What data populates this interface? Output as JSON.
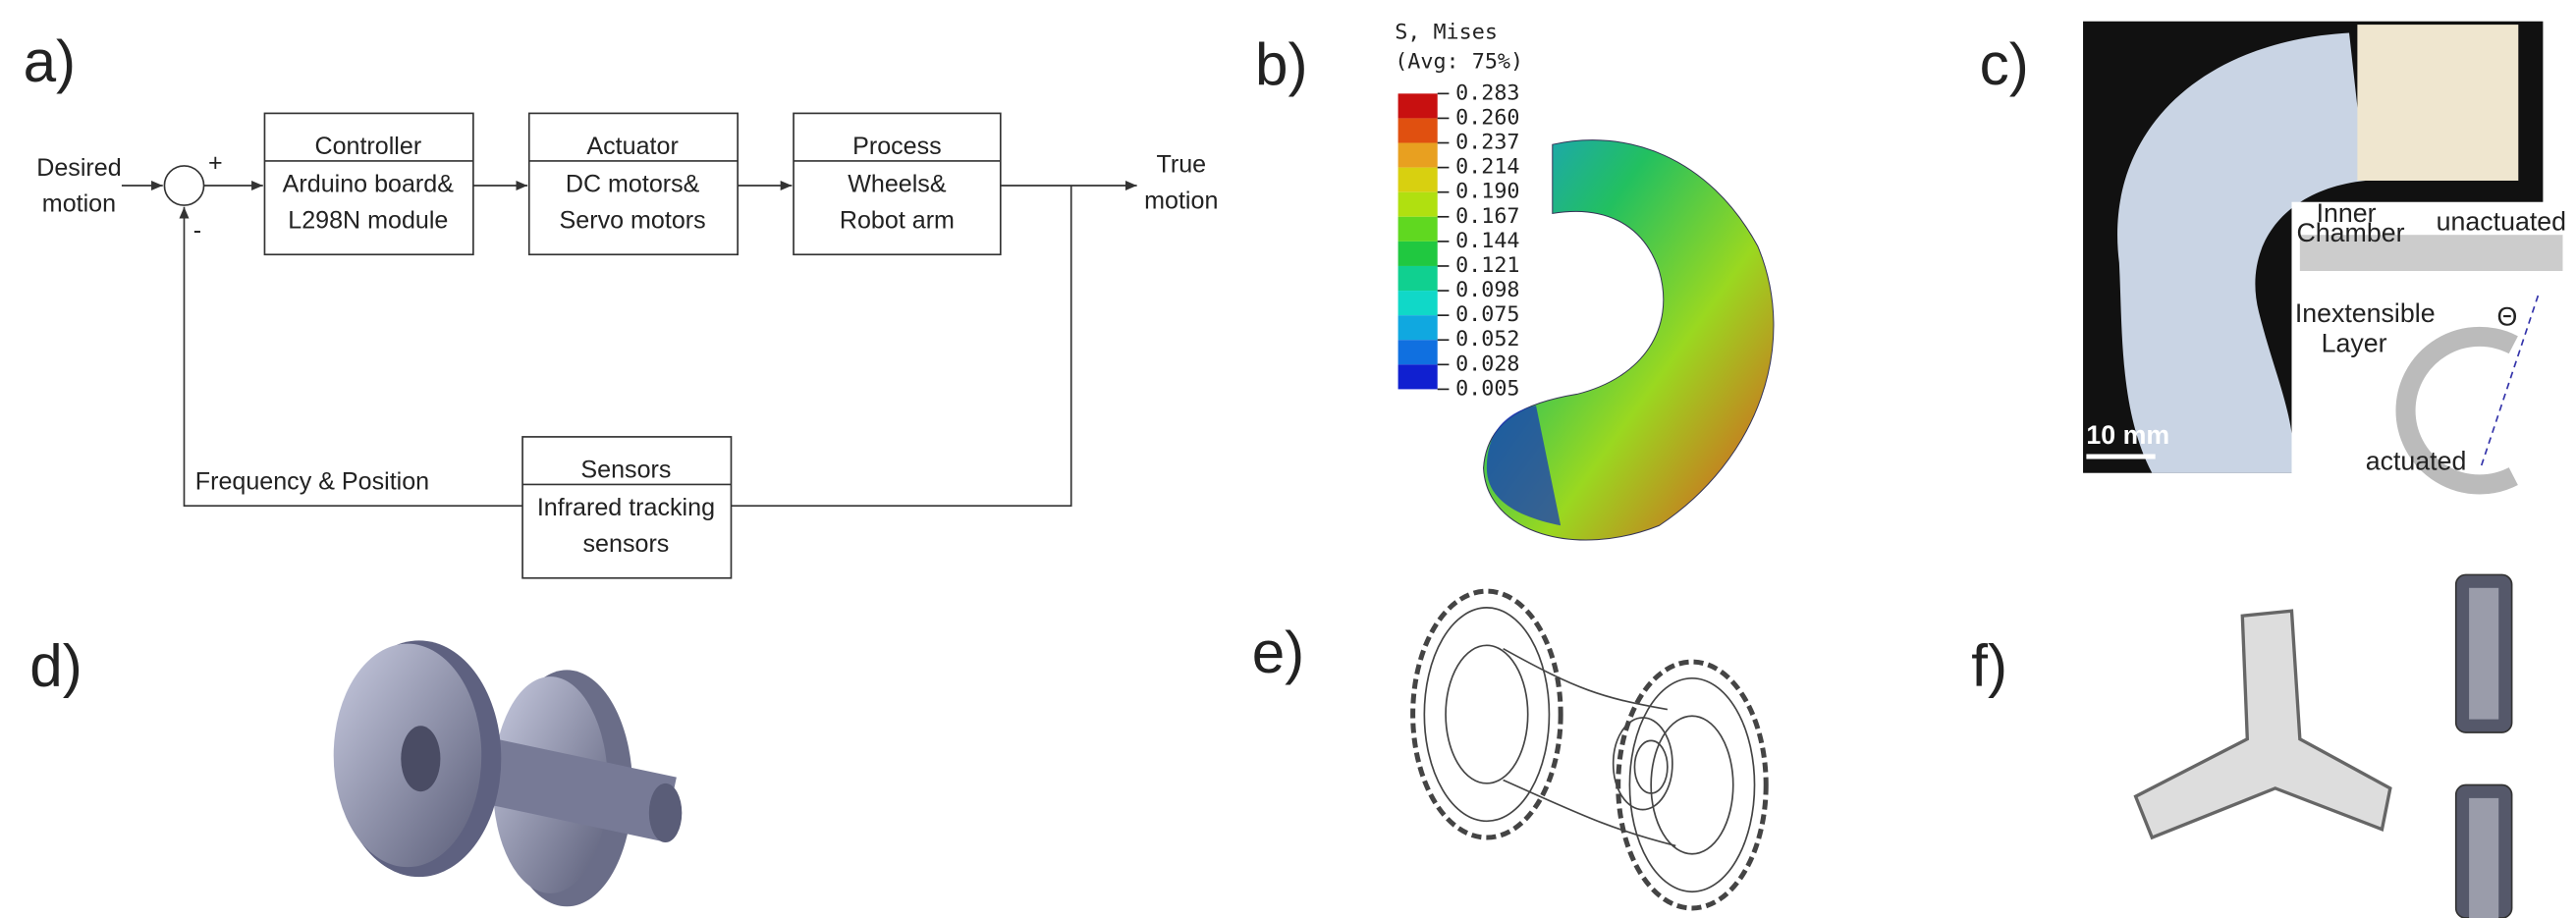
{
  "panels": [
    "a)",
    "b)",
    "c)",
    "d)",
    "e)",
    "f)"
  ],
  "block_diagram": {
    "input": [
      "Desired",
      "motion"
    ],
    "output": [
      "True",
      "motion"
    ],
    "sum_signs": [
      "+",
      "-"
    ],
    "blocks": [
      {
        "title": "Controller",
        "body": [
          "Arduino board&",
          "L298N module"
        ]
      },
      {
        "title": "Actuator",
        "body": [
          "DC motors&",
          "Servo motors"
        ]
      },
      {
        "title": "Process",
        "body": [
          "Wheels&",
          "Robot arm"
        ]
      }
    ],
    "feedback": {
      "title": "Sensors",
      "body": [
        "Infrared tracking",
        "sensors"
      ],
      "label": "Frequency & Position"
    }
  },
  "fea_legend": {
    "title": [
      "S, Mises",
      "(Avg: 75%)"
    ],
    "levels": [
      "0.283",
      "0.260",
      "0.237",
      "0.214",
      "0.190",
      "0.167",
      "0.144",
      "0.121",
      "0.098",
      "0.075",
      "0.052",
      "0.028",
      "0.005"
    ]
  },
  "photo_labels": {
    "inner_chamber": [
      "Inner",
      "Chamber"
    ],
    "unactuated": "unactuated",
    "inextensible": [
      "Inextensible",
      "Layer"
    ],
    "theta": "Θ",
    "actuated": "actuated",
    "scale": "10 mm"
  }
}
